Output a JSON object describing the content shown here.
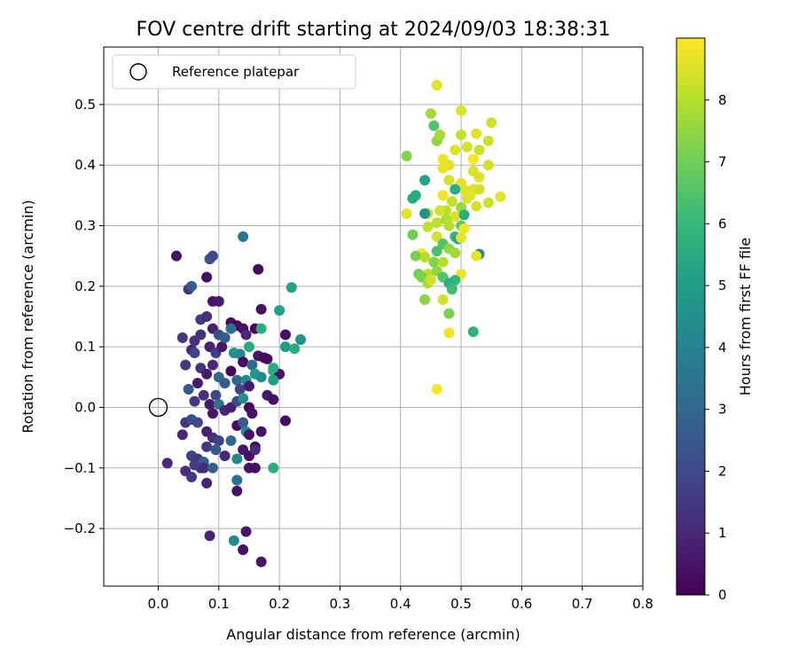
{
  "chart_data": {
    "type": "scatter",
    "title": "FOV centre drift starting at 2024/09/03 18:38:31",
    "xlabel": "Angular distance from reference (arcmin)",
    "ylabel": "Rotation from reference (arcmin)",
    "xlim": [
      -0.09,
      0.8
    ],
    "ylim": [
      -0.295,
      0.595
    ],
    "x_ticks": [
      0.0,
      0.1,
      0.2,
      0.3,
      0.4,
      0.5,
      0.6,
      0.7,
      0.8
    ],
    "x_tick_labels": [
      "0.0",
      "0.1",
      "0.2",
      "0.3",
      "0.4",
      "0.5",
      "0.6",
      "0.7",
      "0.8"
    ],
    "y_ticks": [
      -0.2,
      -0.1,
      0.0,
      0.1,
      0.2,
      0.3,
      0.4,
      0.5
    ],
    "y_tick_labels": [
      "−0.2",
      "−0.1",
      "0.0",
      "0.1",
      "0.2",
      "0.3",
      "0.4",
      "0.5"
    ],
    "grid": true,
    "legend": {
      "placement": "top-left",
      "entries": [
        "Reference platepar"
      ]
    },
    "reference_point": {
      "x": 0.0,
      "y": 0.0
    },
    "colorbar": {
      "label": "Hours from first FF file",
      "colormap": "viridis",
      "range": [
        0,
        9
      ],
      "ticks": [
        0,
        1,
        2,
        3,
        4,
        5,
        6,
        7,
        8
      ],
      "tick_labels": [
        "0",
        "1",
        "2",
        "3",
        "4",
        "5",
        "6",
        "7",
        "8"
      ]
    },
    "point_columns": [
      "x",
      "y",
      "hours"
    ],
    "points": [
      [
        0.03,
        0.25,
        0.5
      ],
      [
        0.05,
        0.195,
        1.3
      ],
      [
        0.055,
        0.2,
        2.5
      ],
      [
        0.08,
        0.215,
        0.3
      ],
      [
        0.085,
        0.245,
        2.4
      ],
      [
        0.09,
        0.25,
        2.0
      ],
      [
        0.14,
        0.282,
        3.6
      ],
      [
        0.165,
        0.228,
        0.3
      ],
      [
        0.09,
        0.175,
        0.5
      ],
      [
        0.1,
        0.175,
        0.7
      ],
      [
        0.17,
        0.162,
        0.4
      ],
      [
        0.2,
        0.16,
        5.2
      ],
      [
        0.22,
        0.198,
        5.2
      ],
      [
        0.16,
        0.13,
        0.2
      ],
      [
        0.21,
        0.1,
        5.0
      ],
      [
        0.225,
        0.097,
        5.5
      ],
      [
        0.235,
        0.112,
        4.6
      ],
      [
        0.07,
        0.145,
        1.5
      ],
      [
        0.08,
        0.15,
        1.2
      ],
      [
        0.09,
        0.13,
        0.8
      ],
      [
        0.1,
        0.12,
        2.3
      ],
      [
        0.12,
        0.14,
        0.3
      ],
      [
        0.13,
        0.135,
        0.2
      ],
      [
        0.14,
        0.13,
        0.4
      ],
      [
        0.145,
        0.12,
        1.0
      ],
      [
        0.15,
        0.1,
        5.5
      ],
      [
        0.17,
        0.13,
        5.7
      ],
      [
        0.18,
        0.08,
        0.3
      ],
      [
        0.19,
        0.06,
        5.5
      ],
      [
        0.2,
        0.055,
        0.5
      ],
      [
        0.21,
        0.12,
        0.4
      ],
      [
        0.19,
        0.045,
        5.0
      ],
      [
        0.19,
        0.065,
        5.5
      ],
      [
        0.04,
        0.115,
        1.5
      ],
      [
        0.06,
        0.11,
        1.2
      ],
      [
        0.07,
        0.12,
        1.3
      ],
      [
        0.085,
        0.1,
        0.8
      ],
      [
        0.095,
        0.09,
        1.6
      ],
      [
        0.105,
        0.1,
        0.6
      ],
      [
        0.11,
        0.115,
        2.6
      ],
      [
        0.12,
        0.13,
        3.3
      ],
      [
        0.125,
        0.09,
        4.6
      ],
      [
        0.135,
        0.088,
        4.2
      ],
      [
        0.14,
        0.075,
        0.3
      ],
      [
        0.155,
        0.07,
        3.2
      ],
      [
        0.165,
        0.085,
        0.5
      ],
      [
        0.175,
        0.082,
        0.2
      ],
      [
        0.045,
        0.07,
        1.5
      ],
      [
        0.055,
        0.095,
        1.0
      ],
      [
        0.06,
        0.09,
        1.8
      ],
      [
        0.07,
        0.065,
        1.4
      ],
      [
        0.08,
        0.055,
        0.7
      ],
      [
        0.09,
        0.07,
        1.0
      ],
      [
        0.1,
        0.05,
        3.0
      ],
      [
        0.11,
        0.04,
        2.5
      ],
      [
        0.12,
        0.06,
        0.2
      ],
      [
        0.13,
        0.045,
        3.0
      ],
      [
        0.135,
        0.03,
        1.8
      ],
      [
        0.145,
        0.045,
        4.3
      ],
      [
        0.15,
        0.035,
        0.6
      ],
      [
        0.16,
        0.055,
        4.8
      ],
      [
        0.17,
        0.05,
        4.2
      ],
      [
        0.18,
        0.02,
        0.6
      ],
      [
        0.19,
        0.013,
        0.4
      ],
      [
        0.05,
        0.03,
        2.5
      ],
      [
        0.06,
        0.01,
        1.5
      ],
      [
        0.065,
        0.04,
        0.7
      ],
      [
        0.075,
        0.02,
        1.2
      ],
      [
        0.085,
        0.005,
        0.6
      ],
      [
        0.09,
        -0.01,
        0.5
      ],
      [
        0.095,
        0.02,
        1.9
      ],
      [
        0.1,
        0.005,
        3.4
      ],
      [
        0.11,
        -0.005,
        1.0
      ],
      [
        0.12,
        0.0,
        0.8
      ],
      [
        0.13,
        0.01,
        2.0
      ],
      [
        0.14,
        0.015,
        4.4
      ],
      [
        0.15,
        0.0,
        0.2
      ],
      [
        0.155,
        -0.01,
        0.4
      ],
      [
        0.045,
        -0.025,
        1.4
      ],
      [
        0.055,
        -0.02,
        2.3
      ],
      [
        0.065,
        -0.025,
        2.0
      ],
      [
        0.04,
        -0.045,
        1.1
      ],
      [
        0.08,
        -0.04,
        0.8
      ],
      [
        0.09,
        -0.05,
        1.2
      ],
      [
        0.1,
        -0.055,
        1.8
      ],
      [
        0.12,
        -0.055,
        3.0
      ],
      [
        0.13,
        -0.03,
        0.3
      ],
      [
        0.14,
        -0.025,
        2.5
      ],
      [
        0.145,
        -0.04,
        4.0
      ],
      [
        0.15,
        -0.045,
        0.5
      ],
      [
        0.16,
        -0.065,
        0.2
      ],
      [
        0.17,
        -0.04,
        0.4
      ],
      [
        0.08,
        -0.065,
        1.5
      ],
      [
        0.095,
        -0.07,
        2.5
      ],
      [
        0.11,
        -0.08,
        1.0
      ],
      [
        0.13,
        -0.085,
        4.2
      ],
      [
        0.14,
        -0.07,
        0.6
      ],
      [
        0.15,
        -0.08,
        0.3
      ],
      [
        0.16,
        -0.07,
        1.1
      ],
      [
        0.055,
        -0.08,
        1.8
      ],
      [
        0.065,
        -0.085,
        1.4
      ],
      [
        0.07,
        -0.1,
        1.2
      ],
      [
        0.075,
        -0.09,
        2.7
      ],
      [
        0.06,
        -0.095,
        1.6
      ],
      [
        0.075,
        -0.1,
        1.0
      ],
      [
        0.09,
        -0.1,
        2.8
      ],
      [
        0.15,
        -0.1,
        0.5
      ],
      [
        0.16,
        -0.1,
        0.4
      ],
      [
        0.19,
        -0.1,
        5.5
      ],
      [
        0.21,
        -0.022,
        0.3
      ],
      [
        0.015,
        -0.092,
        1.1
      ],
      [
        0.045,
        -0.105,
        1.2
      ],
      [
        0.055,
        -0.115,
        1.5
      ],
      [
        0.08,
        -0.125,
        0.9
      ],
      [
        0.13,
        -0.12,
        3.3
      ],
      [
        0.13,
        -0.138,
        0.5
      ],
      [
        0.085,
        -0.212,
        0.9
      ],
      [
        0.125,
        -0.22,
        4.2
      ],
      [
        0.145,
        -0.205,
        0.6
      ],
      [
        0.14,
        -0.235,
        0.4
      ],
      [
        0.17,
        -0.255,
        0.6
      ],
      [
        0.46,
        0.532,
        8.7
      ],
      [
        0.5,
        0.49,
        8.5
      ],
      [
        0.45,
        0.485,
        7.8
      ],
      [
        0.55,
        0.47,
        8.3
      ],
      [
        0.455,
        0.465,
        6.5
      ],
      [
        0.525,
        0.452,
        8.6
      ],
      [
        0.5,
        0.45,
        8.2
      ],
      [
        0.46,
        0.44,
        7.5
      ],
      [
        0.545,
        0.44,
        8.3
      ],
      [
        0.465,
        0.45,
        7.8
      ],
      [
        0.51,
        0.43,
        8.4
      ],
      [
        0.49,
        0.425,
        8.5
      ],
      [
        0.53,
        0.425,
        8.3
      ],
      [
        0.52,
        0.41,
        8.9
      ],
      [
        0.41,
        0.415,
        7.3
      ],
      [
        0.47,
        0.41,
        8.8
      ],
      [
        0.44,
        0.375,
        5.2
      ],
      [
        0.48,
        0.4,
        8.6
      ],
      [
        0.545,
        0.4,
        8.4
      ],
      [
        0.47,
        0.395,
        8.7
      ],
      [
        0.52,
        0.39,
        8.5
      ],
      [
        0.53,
        0.38,
        8.6
      ],
      [
        0.48,
        0.375,
        8.4
      ],
      [
        0.5,
        0.37,
        8.7
      ],
      [
        0.505,
        0.36,
        8.6
      ],
      [
        0.49,
        0.36,
        5.5
      ],
      [
        0.52,
        0.36,
        8.5
      ],
      [
        0.53,
        0.36,
        8.4
      ],
      [
        0.47,
        0.35,
        8.8
      ],
      [
        0.515,
        0.35,
        8.7
      ],
      [
        0.565,
        0.348,
        8.6
      ],
      [
        0.42,
        0.345,
        5.6
      ],
      [
        0.425,
        0.35,
        5.4
      ],
      [
        0.485,
        0.34,
        8.2
      ],
      [
        0.51,
        0.345,
        8.5
      ],
      [
        0.545,
        0.338,
        8.3
      ],
      [
        0.525,
        0.332,
        8.4
      ],
      [
        0.5,
        0.33,
        7.6
      ],
      [
        0.475,
        0.325,
        8.1
      ],
      [
        0.445,
        0.32,
        8.3
      ],
      [
        0.465,
        0.325,
        8.4
      ],
      [
        0.41,
        0.32,
        8.6
      ],
      [
        0.44,
        0.32,
        4.6
      ],
      [
        0.49,
        0.315,
        8.5
      ],
      [
        0.505,
        0.318,
        5.6
      ],
      [
        0.46,
        0.305,
        8.1
      ],
      [
        0.475,
        0.31,
        7.9
      ],
      [
        0.48,
        0.3,
        8.0
      ],
      [
        0.5,
        0.3,
        6.8
      ],
      [
        0.505,
        0.295,
        8.8
      ],
      [
        0.445,
        0.298,
        8.2
      ],
      [
        0.42,
        0.285,
        7.0
      ],
      [
        0.46,
        0.282,
        8.4
      ],
      [
        0.49,
        0.282,
        6.0
      ],
      [
        0.495,
        0.278,
        5.3
      ],
      [
        0.5,
        0.28,
        8.7
      ],
      [
        0.47,
        0.27,
        6.5
      ],
      [
        0.48,
        0.262,
        7.5
      ],
      [
        0.49,
        0.255,
        7.7
      ],
      [
        0.46,
        0.258,
        6.4
      ],
      [
        0.435,
        0.254,
        8.8
      ],
      [
        0.44,
        0.248,
        8.0
      ],
      [
        0.425,
        0.25,
        7.2
      ],
      [
        0.455,
        0.24,
        7.3
      ],
      [
        0.47,
        0.24,
        8.0
      ],
      [
        0.53,
        0.253,
        4.4
      ],
      [
        0.525,
        0.25,
        8.7
      ],
      [
        0.43,
        0.22,
        7.0
      ],
      [
        0.445,
        0.22,
        8.1
      ],
      [
        0.46,
        0.225,
        7.5
      ],
      [
        0.47,
        0.215,
        6.5
      ],
      [
        0.5,
        0.22,
        8.8
      ],
      [
        0.49,
        0.21,
        6.0
      ],
      [
        0.435,
        0.215,
        7.2
      ],
      [
        0.445,
        0.205,
        7.8
      ],
      [
        0.48,
        0.205,
        5.7
      ],
      [
        0.45,
        0.21,
        8.4
      ],
      [
        0.485,
        0.195,
        6.2
      ],
      [
        0.44,
        0.178,
        7.4
      ],
      [
        0.47,
        0.178,
        8.4
      ],
      [
        0.48,
        0.155,
        7.2
      ],
      [
        0.52,
        0.125,
        5.8
      ],
      [
        0.48,
        0.123,
        8.8
      ],
      [
        0.46,
        0.03,
        8.9
      ]
    ]
  }
}
